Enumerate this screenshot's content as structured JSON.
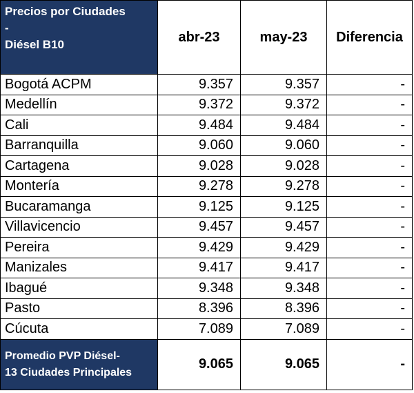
{
  "table": {
    "header": {
      "city": [
        "Precios por Ciudades",
        "-",
        "Diésel B10"
      ],
      "columns": [
        "abr-23",
        "may-23",
        "Diferencia"
      ]
    },
    "rows": [
      [
        "Bogotá ACPM",
        "9.357",
        "9.357",
        "-"
      ],
      [
        "Medellín",
        "9.372",
        "9.372",
        "-"
      ],
      [
        "Cali",
        "9.484",
        "9.484",
        "-"
      ],
      [
        "Barranquilla",
        "9.060",
        "9.060",
        "-"
      ],
      [
        "Cartagena",
        "9.028",
        "9.028",
        "-"
      ],
      [
        "Montería",
        "9.278",
        "9.278",
        "-"
      ],
      [
        "Bucaramanga",
        "9.125",
        "9.125",
        "-"
      ],
      [
        "Villavicencio",
        "9.457",
        "9.457",
        "-"
      ],
      [
        "Pereira",
        "9.429",
        "9.429",
        "-"
      ],
      [
        "Manizales",
        "9.417",
        "9.417",
        "-"
      ],
      [
        "Ibagué",
        "9.348",
        "9.348",
        "-"
      ],
      [
        "Pasto",
        "8.396",
        "8.396",
        "-"
      ],
      [
        "Cúcuta",
        "7.089",
        "7.089",
        "-"
      ]
    ],
    "footer": {
      "label": [
        "Promedio PVP Diésel-",
        "13 Ciudades Principales"
      ],
      "values": [
        "9.065",
        "9.065",
        "-"
      ]
    }
  }
}
